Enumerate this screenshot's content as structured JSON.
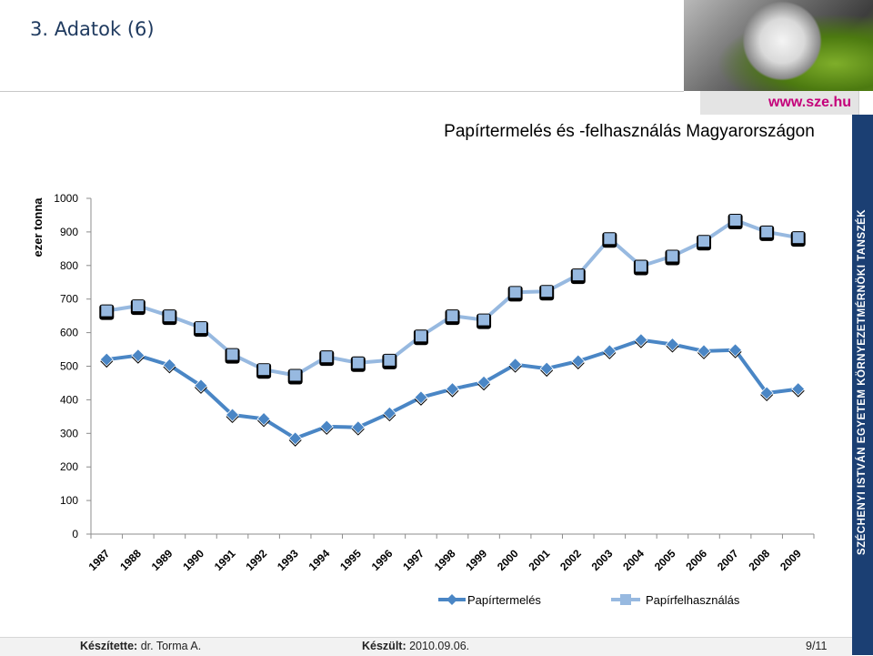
{
  "slide": {
    "title": "3. Adatok (6)",
    "url": "www.sze.hu",
    "side_text": "SZÉCHENYI ISTVÁN EGYETEM KÖRNYEZETMÉRNÖKI TANSZÉK"
  },
  "footer": {
    "author_label": "Készítette:",
    "author": "dr. Torma A.",
    "date_label": "Készült:",
    "date": "2010.09.06.",
    "page": "9/11"
  },
  "colors": {
    "production": "#4a86c5",
    "consumption": "#97b9e0",
    "side_band": "#1b3f73",
    "url": "#c4007a"
  },
  "chart_data": {
    "type": "line",
    "title": "Papírtermelés és -felhasználás Magyarországon",
    "xlabel": "",
    "ylabel": "ezer tonna",
    "ylim": [
      0,
      1000
    ],
    "yticks": [
      0,
      100,
      200,
      300,
      400,
      500,
      600,
      700,
      800,
      900,
      1000
    ],
    "grid": false,
    "legend_position": "bottom",
    "categories": [
      "1987",
      "1988",
      "1989",
      "1990",
      "1991",
      "1992",
      "1993",
      "1994",
      "1995",
      "1996",
      "1997",
      "1998",
      "1999",
      "2000",
      "2001",
      "2002",
      "2003",
      "2004",
      "2005",
      "2006",
      "2007",
      "2008",
      "2009"
    ],
    "series": [
      {
        "name": "Papírtermelés",
        "marker": "diamond",
        "values": [
          520,
          532,
          503,
          442,
          355,
          343,
          285,
          320,
          318,
          360,
          407,
          432,
          452,
          505,
          493,
          515,
          545,
          578,
          565,
          545,
          548,
          420,
          432
        ]
      },
      {
        "name": "Papírfelhasználás",
        "marker": "square",
        "values": [
          665,
          680,
          650,
          615,
          535,
          490,
          473,
          528,
          510,
          518,
          590,
          650,
          638,
          720,
          723,
          772,
          880,
          798,
          828,
          872,
          935,
          900,
          883
        ]
      }
    ]
  }
}
